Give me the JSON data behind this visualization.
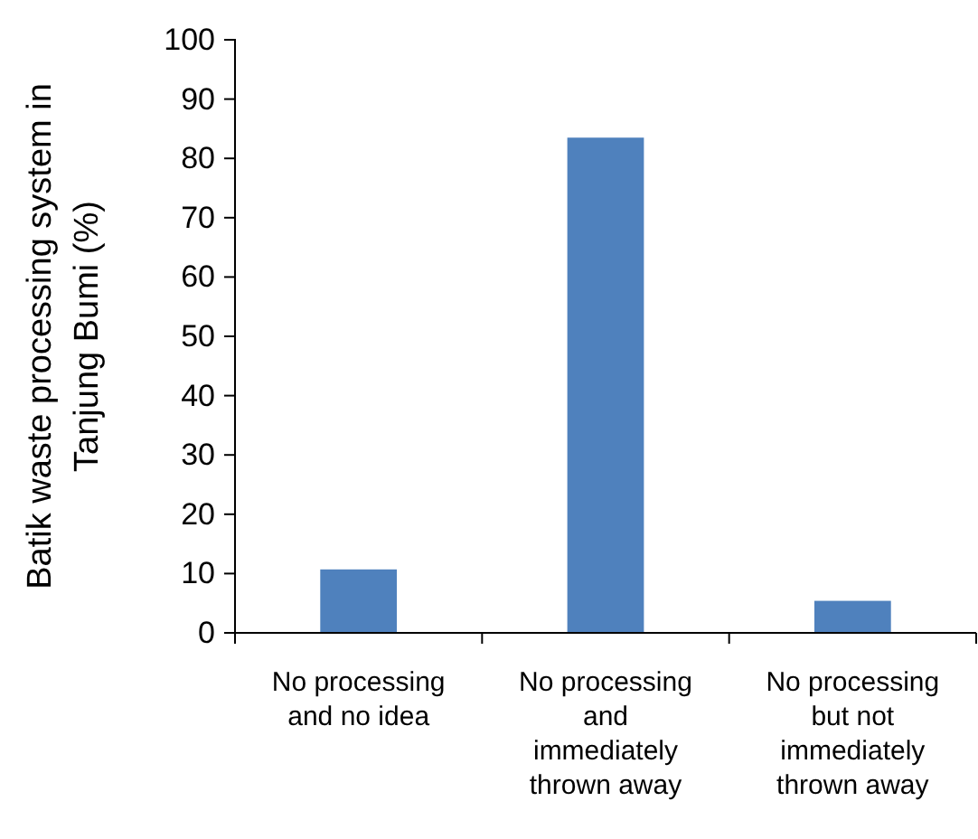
{
  "chart_data": {
    "type": "bar",
    "ylabel": "Batik waste processing system in Tanjung Bumi (%)",
    "categories": [
      "No processing and no idea",
      "No processing and immediately thrown away",
      "No processing but not immediately thrown away"
    ],
    "values": [
      10.7,
      83.5,
      5.4
    ],
    "color": "#4f81bd",
    "ylim": [
      0,
      100
    ],
    "yticks": [
      0,
      10,
      20,
      30,
      40,
      50,
      60,
      70,
      80,
      90,
      100
    ],
    "grid": false
  }
}
